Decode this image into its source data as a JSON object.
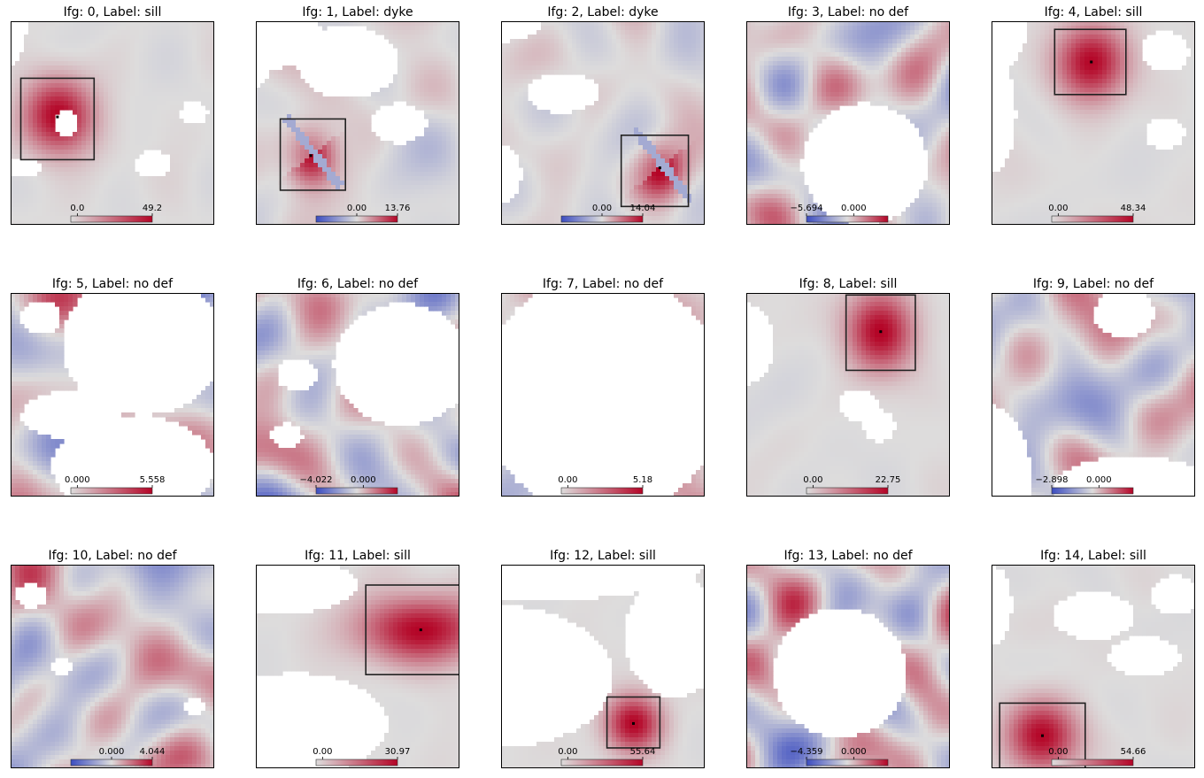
{
  "chart_data": [
    {
      "type": "heatmap",
      "title": "Ifg: 0, Label: sill",
      "label": "sill",
      "colorbar": {
        "ticks": [
          "0.0",
          "49.2"
        ],
        "diverging": false
      },
      "deformation": {
        "cx": 0.23,
        "cy": 0.47,
        "rx": 0.25,
        "ry": 0.27,
        "strength": 1.0,
        "kind": "sill"
      },
      "box": {
        "x0": 0.05,
        "y0": 0.28,
        "x1": 0.41,
        "y1": 0.68
      },
      "mask": [
        [
          0.27,
          0.5,
          0.06,
          0.07
        ],
        [
          0.0,
          0.0,
          0.08,
          0.22
        ],
        [
          0.05,
          0.72,
          0.1,
          0.05
        ],
        [
          0.7,
          0.7,
          0.09,
          0.07
        ],
        [
          0.9,
          0.45,
          0.07,
          0.06
        ]
      ],
      "noise": 0.08,
      "seed": 11
    },
    {
      "type": "heatmap",
      "title": "Ifg: 1, Label: dyke",
      "label": "dyke",
      "colorbar": {
        "ticks": [
          "0.00",
          "13.76"
        ],
        "diverging": true
      },
      "deformation": {
        "cx": 0.27,
        "cy": 0.66,
        "rx": 0.16,
        "ry": 0.2,
        "strength": 1.0,
        "kind": "dyke"
      },
      "box": {
        "x0": 0.12,
        "y0": 0.48,
        "x1": 0.44,
        "y1": 0.83
      },
      "mask": [
        [
          0.45,
          0.2,
          0.25,
          0.18
        ],
        [
          0.1,
          0.05,
          0.22,
          0.18
        ],
        [
          0.7,
          0.5,
          0.14,
          0.1
        ],
        [
          0.0,
          0.2,
          0.08,
          0.12
        ]
      ],
      "noise": 0.22,
      "seed": 23
    },
    {
      "type": "heatmap",
      "title": "Ifg: 2, Label: dyke",
      "label": "dyke",
      "colorbar": {
        "ticks": [
          "0.00",
          "14.04"
        ],
        "diverging": true
      },
      "deformation": {
        "cx": 0.78,
        "cy": 0.72,
        "rx": 0.17,
        "ry": 0.2,
        "strength": 1.0,
        "kind": "dyke"
      },
      "box": {
        "x0": 0.59,
        "y0": 0.56,
        "x1": 0.92,
        "y1": 0.91
      },
      "mask": [
        [
          0.0,
          0.0,
          0.2,
          0.1
        ],
        [
          0.3,
          0.35,
          0.18,
          0.1
        ],
        [
          0.0,
          0.75,
          0.1,
          0.15
        ]
      ],
      "noise": 0.25,
      "seed": 37
    },
    {
      "type": "heatmap",
      "title": "Ifg: 3, Label: no def",
      "label": "no def",
      "colorbar": {
        "ticks": [
          "−5.694",
          "0.000"
        ],
        "diverging": true
      },
      "deformation": null,
      "box": null,
      "mask": [
        [
          0.58,
          0.7,
          0.31,
          0.3
        ]
      ],
      "noise": 0.75,
      "seed": 41
    },
    {
      "type": "heatmap",
      "title": "Ifg: 4, Label: sill",
      "label": "sill",
      "colorbar": {
        "ticks": [
          "0.00",
          "48.34"
        ],
        "diverging": false
      },
      "deformation": {
        "cx": 0.49,
        "cy": 0.2,
        "rx": 0.25,
        "ry": 0.27,
        "strength": 1.0,
        "kind": "sill"
      },
      "box": {
        "x0": 0.31,
        "y0": 0.04,
        "x1": 0.66,
        "y1": 0.36
      },
      "mask": [
        [
          0.0,
          0.0,
          0.18,
          0.25
        ],
        [
          0.0,
          0.45,
          0.12,
          0.3
        ],
        [
          0.85,
          0.15,
          0.12,
          0.1
        ],
        [
          0.85,
          0.55,
          0.1,
          0.08
        ]
      ],
      "noise": 0.05,
      "seed": 53
    },
    {
      "type": "heatmap",
      "title": "Ifg: 5, Label: no def",
      "label": "no def",
      "colorbar": {
        "ticks": [
          "0.000",
          "5.558"
        ],
        "diverging": false
      },
      "deformation": null,
      "box": null,
      "mask": [
        [
          0.65,
          0.25,
          0.4,
          0.35
        ],
        [
          0.6,
          0.85,
          0.4,
          0.25
        ],
        [
          0.3,
          0.6,
          0.25,
          0.12
        ],
        [
          0.15,
          0.12,
          0.1,
          0.08
        ]
      ],
      "noise": 0.7,
      "seed": 67
    },
    {
      "type": "heatmap",
      "title": "Ifg: 6, Label: no def",
      "label": "no def",
      "colorbar": {
        "ticks": [
          "−4.022",
          "0.000"
        ],
        "diverging": true
      },
      "deformation": null,
      "box": null,
      "mask": [
        [
          0.72,
          0.35,
          0.34,
          0.3
        ],
        [
          0.2,
          0.4,
          0.1,
          0.08
        ],
        [
          0.15,
          0.7,
          0.08,
          0.06
        ]
      ],
      "noise": 0.8,
      "seed": 71
    },
    {
      "type": "heatmap",
      "title": "Ifg: 7, Label: no def",
      "label": "no def",
      "colorbar": {
        "ticks": [
          "0.00",
          "5.18"
        ],
        "diverging": false
      },
      "deformation": null,
      "box": null,
      "mask": [
        [
          0.5,
          0.5,
          0.6,
          0.6
        ]
      ],
      "noise": 0.7,
      "seed": 83
    },
    {
      "type": "heatmap",
      "title": "Ifg: 8, Label: sill",
      "label": "sill",
      "colorbar": {
        "ticks": [
          "0.00",
          "22.75"
        ],
        "diverging": false
      },
      "deformation": {
        "cx": 0.66,
        "cy": 0.19,
        "rx": 0.24,
        "ry": 0.28,
        "strength": 1.0,
        "kind": "sill"
      },
      "box": {
        "x0": 0.49,
        "y0": 0.01,
        "x1": 0.83,
        "y1": 0.38
      },
      "mask": [
        [
          0.0,
          0.25,
          0.14,
          0.2
        ],
        [
          0.55,
          0.55,
          0.1,
          0.08
        ],
        [
          0.65,
          0.65,
          0.08,
          0.08
        ]
      ],
      "noise": 0.08,
      "seed": 97
    },
    {
      "type": "heatmap",
      "title": "Ifg: 9, Label: no def",
      "label": "no def",
      "colorbar": {
        "ticks": [
          "−2.898",
          "0.000"
        ],
        "diverging": true
      },
      "deformation": null,
      "box": null,
      "mask": [
        [
          0.0,
          0.95,
          0.2,
          0.4
        ],
        [
          0.7,
          0.95,
          0.4,
          0.15
        ],
        [
          0.65,
          0.1,
          0.15,
          0.12
        ]
      ],
      "noise": 0.8,
      "seed": 101
    },
    {
      "type": "heatmap",
      "title": "Ifg: 10, Label: no def",
      "label": "no def",
      "colorbar": {
        "ticks": [
          "0.000",
          "4.044"
        ],
        "diverging": true
      },
      "deformation": null,
      "box": null,
      "mask": [
        [
          0.1,
          0.15,
          0.08,
          0.06
        ],
        [
          0.25,
          0.5,
          0.05,
          0.04
        ],
        [
          0.9,
          0.7,
          0.05,
          0.05
        ]
      ],
      "noise": 0.85,
      "seed": 113
    },
    {
      "type": "heatmap",
      "title": "Ifg: 11, Label: sill",
      "label": "sill",
      "colorbar": {
        "ticks": [
          "0.00",
          "30.97"
        ],
        "diverging": false
      },
      "deformation": {
        "cx": 0.81,
        "cy": 0.32,
        "rx": 0.45,
        "ry": 0.24,
        "strength": 1.0,
        "kind": "sill"
      },
      "box": {
        "x0": 0.54,
        "y0": 0.1,
        "x1": 1.0,
        "y1": 0.54
      },
      "mask": [
        [
          0.05,
          0.1,
          0.45,
          0.15
        ],
        [
          0.2,
          0.78,
          0.45,
          0.25
        ]
      ],
      "noise": 0.06,
      "seed": 127
    },
    {
      "type": "heatmap",
      "title": "Ifg: 12, Label: sill",
      "label": "sill",
      "colorbar": {
        "ticks": [
          "0.00",
          "55.64"
        ],
        "diverging": false
      },
      "deformation": {
        "cx": 0.65,
        "cy": 0.78,
        "rx": 0.2,
        "ry": 0.2,
        "strength": 1.0,
        "kind": "sill"
      },
      "box": {
        "x0": 0.52,
        "y0": 0.65,
        "x1": 0.78,
        "y1": 0.9
      },
      "mask": [
        [
          0.1,
          0.0,
          0.9,
          0.18
        ],
        [
          0.85,
          0.35,
          0.25,
          0.3
        ],
        [
          0.0,
          0.55,
          0.55,
          0.35
        ]
      ],
      "noise": 0.05,
      "seed": 131
    },
    {
      "type": "heatmap",
      "title": "Ifg: 13, Label: no def",
      "label": "no def",
      "colorbar": {
        "ticks": [
          "−4.359",
          "0.000"
        ],
        "diverging": true
      },
      "deformation": null,
      "box": null,
      "mask": [
        [
          0.46,
          0.53,
          0.33,
          0.32
        ]
      ],
      "noise": 0.8,
      "seed": 139
    },
    {
      "type": "heatmap",
      "title": "Ifg: 14, Label: sill",
      "label": "sill",
      "colorbar": {
        "ticks": [
          "0.00",
          "54.66"
        ],
        "diverging": false
      },
      "deformation": {
        "cx": 0.25,
        "cy": 0.84,
        "rx": 0.25,
        "ry": 0.25,
        "strength": 1.0,
        "kind": "sill"
      },
      "box": {
        "x0": 0.04,
        "y0": 0.68,
        "x1": 0.46,
        "y1": 1.0
      },
      "mask": [
        [
          0.0,
          0.2,
          0.1,
          0.2
        ],
        [
          0.5,
          0.25,
          0.2,
          0.12
        ],
        [
          0.75,
          0.45,
          0.18,
          0.1
        ],
        [
          0.9,
          0.15,
          0.12,
          0.1
        ]
      ],
      "noise": 0.05,
      "seed": 149
    }
  ],
  "colors": {
    "positive_max": "#b40426",
    "zero": "#dddcdc",
    "negative_max": "#3b4cc0",
    "frame": "#000000",
    "box": "#222222"
  }
}
